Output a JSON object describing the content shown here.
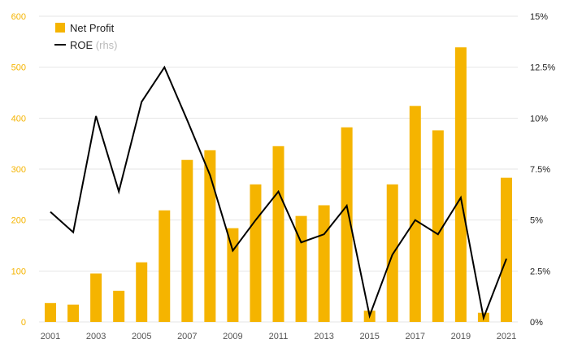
{
  "chart_data": {
    "type": "bar",
    "categories": [
      "2001",
      "2002",
      "2003",
      "2004",
      "2005",
      "2006",
      "2007",
      "2008",
      "2009",
      "2010",
      "2011",
      "2012",
      "2013",
      "2014",
      "2015",
      "2016",
      "2017",
      "2018",
      "2019",
      "2020",
      "2021"
    ],
    "x_tick_labels": [
      "2001",
      "2003",
      "2005",
      "2007",
      "2009",
      "2011",
      "2013",
      "2015",
      "2017",
      "2019",
      "2021"
    ],
    "series": [
      {
        "name": "Net Profit",
        "type": "bar",
        "axis": "left",
        "color": "#f5b400",
        "values": [
          37,
          34,
          95,
          61,
          117,
          219,
          318,
          337,
          184,
          270,
          345,
          208,
          229,
          382,
          22,
          270,
          424,
          376,
          539,
          18,
          283
        ]
      },
      {
        "name": "ROE",
        "name_suffix": "(rhs)",
        "type": "line",
        "axis": "right",
        "color": "#000000",
        "values": [
          5.4,
          4.4,
          10.1,
          6.4,
          10.8,
          12.5,
          9.9,
          7.2,
          3.5,
          5.0,
          6.4,
          3.9,
          4.3,
          5.7,
          0.3,
          3.3,
          5.0,
          4.3,
          6.1,
          0.2,
          3.1
        ]
      }
    ],
    "y_left": {
      "ylim": [
        0,
        600
      ],
      "ticks": [
        "0",
        "100",
        "200",
        "300",
        "400",
        "500",
        "600"
      ],
      "tick_values": [
        0,
        100,
        200,
        300,
        400,
        500,
        600
      ]
    },
    "y_right": {
      "ylim": [
        0,
        15
      ],
      "ticks": [
        "0%",
        "2.5%",
        "5%",
        "7.5%",
        "10%",
        "12.5%",
        "15%"
      ],
      "tick_values": [
        0,
        2.5,
        5,
        7.5,
        10,
        12.5,
        15
      ]
    },
    "grid": "horizontal",
    "legend": "top-left"
  }
}
